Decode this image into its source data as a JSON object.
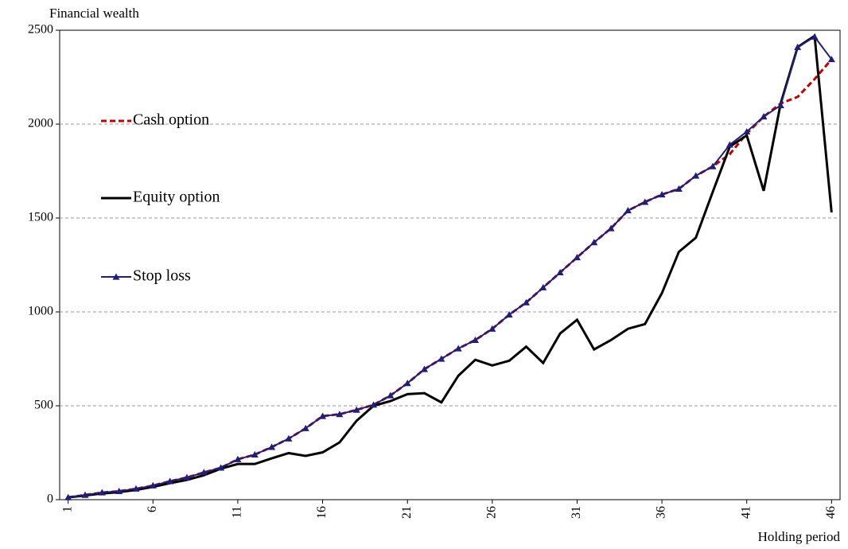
{
  "chart_data": {
    "type": "line",
    "y_label": "Financial wealth",
    "x_label": "Holding period",
    "x": [
      1,
      2,
      3,
      4,
      5,
      6,
      7,
      8,
      9,
      10,
      11,
      12,
      13,
      14,
      15,
      16,
      17,
      18,
      19,
      20,
      21,
      22,
      23,
      24,
      25,
      26,
      27,
      28,
      29,
      30,
      31,
      32,
      33,
      34,
      35,
      36,
      37,
      38,
      39,
      40,
      41,
      42,
      43,
      44,
      45,
      46
    ],
    "xlim": [
      0.5,
      46.5
    ],
    "xticks": [
      1,
      6,
      11,
      16,
      21,
      26,
      31,
      36,
      41,
      46
    ],
    "ylim": [
      0,
      2500
    ],
    "yticks": [
      0,
      500,
      1000,
      1500,
      2000,
      2500
    ],
    "grid": true,
    "legend": "left",
    "series": [
      {
        "name": "Cash option",
        "color": "#c00000",
        "dashed": true,
        "marker": null,
        "values": [
          12,
          25,
          38,
          45,
          58,
          75,
          98,
          118,
          145,
          170,
          215,
          240,
          280,
          325,
          380,
          445,
          455,
          478,
          505,
          555,
          620,
          695,
          750,
          805,
          850,
          910,
          985,
          1050,
          1130,
          1210,
          1290,
          1370,
          1445,
          1540,
          1585,
          1625,
          1655,
          1725,
          1775,
          1840,
          1950,
          2040,
          2110,
          2145,
          2240,
          2345
        ]
      },
      {
        "name": "Equity option",
        "color": "#000000",
        "dashed": false,
        "marker": null,
        "values": [
          12,
          22,
          33,
          40,
          52,
          68,
          88,
          105,
          130,
          165,
          190,
          190,
          220,
          248,
          233,
          252,
          305,
          420,
          500,
          525,
          562,
          567,
          518,
          660,
          745,
          715,
          740,
          815,
          728,
          885,
          958,
          800,
          850,
          910,
          935,
          1100,
          1320,
          1395,
          1640,
          1880,
          1940,
          1645,
          2110,
          2410,
          2470,
          1530
        ]
      },
      {
        "name": "Stop loss",
        "color": "#1f1f78",
        "dashed": false,
        "marker": "triangle",
        "values": [
          12,
          25,
          38,
          45,
          58,
          75,
          98,
          118,
          145,
          170,
          215,
          240,
          280,
          325,
          380,
          445,
          455,
          478,
          505,
          555,
          620,
          695,
          750,
          805,
          850,
          910,
          985,
          1050,
          1130,
          1210,
          1290,
          1370,
          1445,
          1540,
          1585,
          1625,
          1655,
          1725,
          1775,
          1890,
          1960,
          2040,
          2100,
          2410,
          2465,
          2345
        ]
      }
    ]
  }
}
